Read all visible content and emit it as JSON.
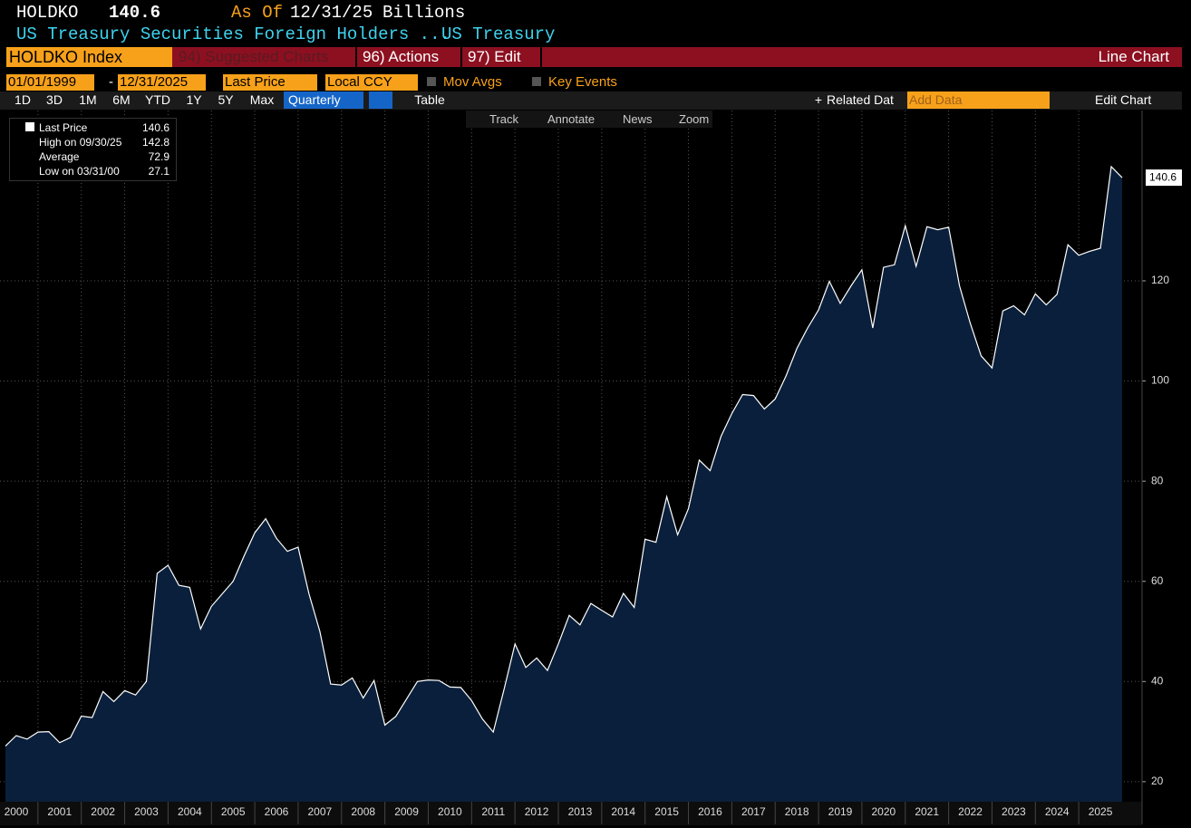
{
  "header": {
    "ticker": "HOLDKO",
    "last": 140.6,
    "as_of_label": "As Of",
    "as_of": "12/31/25",
    "units": "Billions",
    "description": "US Treasury Securities Foreign Holders ...",
    "source": "US Treasury"
  },
  "menu": {
    "security": "HOLDKO Index",
    "items": [
      "94) Suggested Charts",
      "96) Actions",
      "97) Edit"
    ],
    "view": "Line Chart"
  },
  "controls": {
    "start_date": "01/01/1999",
    "separator": "-",
    "end_date": "12/31/2025",
    "field": "Last Price",
    "currency": "Local CCY",
    "options": [
      "Mov Avgs",
      "Key Events"
    ]
  },
  "toolbar": {
    "ranges": [
      "1D",
      "3D",
      "1M",
      "6M",
      "YTD",
      "1Y",
      "5Y",
      "Max"
    ],
    "frequency": "Quarterly",
    "table": "Table",
    "related": "Related Dat",
    "add_data": "Add Data",
    "edit": "Edit Chart"
  },
  "chart_tools": [
    "Track",
    "Annotate",
    "News",
    "Zoom"
  ],
  "legend": [
    {
      "label": "Last Price",
      "value": 140.6
    },
    {
      "label": "High on 09/30/25",
      "value": 142.8
    },
    {
      "label": "Average",
      "value": 72.9
    },
    {
      "label": "Low on 03/31/00",
      "value": 27.1
    }
  ],
  "chart_data": {
    "type": "area",
    "x": [
      2000.25,
      2000.5,
      2000.75,
      2001,
      2001.25,
      2001.5,
      2001.75,
      2002,
      2002.25,
      2002.5,
      2002.75,
      2003,
      2003.25,
      2003.5,
      2003.75,
      2004,
      2004.25,
      2004.5,
      2004.75,
      2005,
      2005.25,
      2005.5,
      2005.75,
      2006,
      2006.25,
      2006.5,
      2006.75,
      2007,
      2007.25,
      2007.5,
      2007.75,
      2008,
      2008.25,
      2008.5,
      2008.75,
      2009,
      2009.25,
      2009.5,
      2009.75,
      2010,
      2010.25,
      2010.5,
      2010.75,
      2011,
      2011.25,
      2011.5,
      2011.75,
      2012,
      2012.25,
      2012.5,
      2012.75,
      2013,
      2013.25,
      2013.5,
      2013.75,
      2014,
      2014.25,
      2014.5,
      2014.75,
      2015,
      2015.25,
      2015.5,
      2015.75,
      2016,
      2016.25,
      2016.5,
      2016.75,
      2017,
      2017.25,
      2017.5,
      2017.75,
      2018,
      2018.25,
      2018.5,
      2018.75,
      2019,
      2019.25,
      2019.5,
      2019.75,
      2020,
      2020.25,
      2020.5,
      2020.75,
      2021,
      2021.25,
      2021.5,
      2021.75,
      2022,
      2022.25,
      2022.5,
      2022.75,
      2023,
      2023.25,
      2023.5,
      2023.75,
      2024,
      2024.25,
      2024.5,
      2024.75,
      2025,
      2025.25,
      2025.5,
      2025.75,
      2026
    ],
    "series": [
      {
        "name": "Last Price",
        "color": "#ffffff",
        "fill": "#0a1f3b",
        "values": [
          27.1,
          29.2,
          28.5,
          29.9,
          30,
          27.8,
          28.8,
          33.1,
          32.8,
          38,
          36,
          38.2,
          37.3,
          40,
          61.6,
          63.2,
          59.2,
          58.8,
          50.5,
          55,
          57.5,
          60,
          65,
          69.7,
          72.5,
          68.6,
          66,
          66.8,
          57.5,
          50,
          39.5,
          39.3,
          40.7,
          36.7,
          40.2,
          31.3,
          33,
          36.5,
          40,
          40.3,
          40.2,
          38.9,
          38.8,
          36.2,
          32.5,
          29.9,
          38.5,
          47.5,
          42.8,
          44.7,
          42.2,
          47.5,
          53.2,
          51.3,
          55.6,
          54.2,
          52.9,
          57.6,
          54.8,
          68.4,
          67.8,
          76.9,
          69.3,
          74.5,
          84.2,
          82.1,
          88.9,
          93.5,
          97.3,
          97.1,
          94.4,
          96.4,
          101,
          106.5,
          110.6,
          114.2,
          119.9,
          115.5,
          119,
          122.2,
          110.6,
          122.7,
          123.2,
          131,
          122.9,
          130.8,
          130.2,
          130.7,
          119,
          111.5,
          105,
          102.6,
          114,
          115,
          113.2,
          117.4,
          115.2,
          117.3,
          127.2,
          125.1,
          125.9,
          126.5,
          142.8,
          140.6
        ]
      }
    ],
    "xlim": [
      2000.125,
      2026.46
    ],
    "xticks": [
      2000,
      2001,
      2002,
      2003,
      2004,
      2005,
      2006,
      2007,
      2008,
      2009,
      2010,
      2011,
      2012,
      2013,
      2014,
      2015,
      2016,
      2017,
      2018,
      2019,
      2020,
      2021,
      2022,
      2023,
      2024,
      2025
    ],
    "ylim": [
      16,
      154
    ],
    "yticks": [
      20,
      40,
      60,
      80,
      100,
      120
    ],
    "grid": true
  }
}
